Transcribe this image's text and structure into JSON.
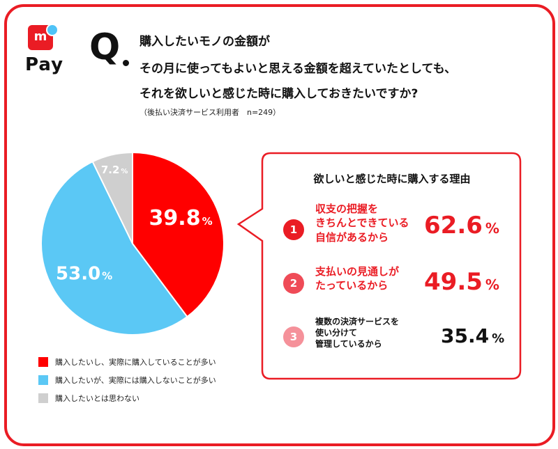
{
  "logo": {
    "mark": "m",
    "text": "Pay"
  },
  "question": {
    "mark": "Q",
    "lines": [
      "購入したいモノの金額が",
      "その月に使ってもよいと思える金額を超えていたとしても、",
      "それを欲しいと感じた時に購入しておきたいですか?"
    ],
    "note": "（後払い決済サービス利用者　n=249）"
  },
  "chart_data": [
    {
      "type": "pie",
      "slices": [
        {
          "label": "購入したいし、実際に購入していることが多い",
          "value": 39.8,
          "display": "39.8",
          "color": "#ff0000"
        },
        {
          "label": "購入したいが、実際には購入しないことが多い",
          "value": 53.0,
          "display": "53.0",
          "color": "#5bc8f5"
        },
        {
          "label": "購入したいとは思わない",
          "value": 7.2,
          "display": "7.2",
          "color": "#cfcfcf"
        }
      ],
      "unit": "%",
      "legend": "bottom-left"
    },
    {
      "type": "table",
      "title": "欲しいと感じた時に購入する理由",
      "rows": [
        {
          "rank": "1",
          "lines": [
            "収支の把握を",
            "きちんとできている",
            "自信があるから"
          ],
          "value": 62.6,
          "display": "62.6",
          "unit": "%",
          "color": "#ea1c24",
          "badge_color": "#ea1c24"
        },
        {
          "rank": "2",
          "lines": [
            "支払いの見通しが",
            "たっているから"
          ],
          "value": 49.5,
          "display": "49.5",
          "unit": "%",
          "color": "#ea1c24",
          "badge_color": "#ef4b57"
        },
        {
          "rank": "3",
          "lines": [
            "複数の決済サービスを",
            "使い分けて",
            "管理しているから"
          ],
          "value": 35.4,
          "display": "35.4",
          "unit": "%",
          "color": "#111111",
          "badge_color": "#f5919a"
        }
      ]
    }
  ]
}
